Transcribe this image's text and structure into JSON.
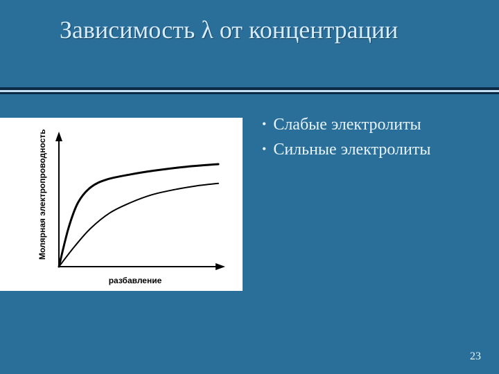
{
  "slide": {
    "title": "Зависимость λ от концентрации",
    "page_number": "23",
    "background_color": "#2a6f9a",
    "title_color": "#d6ecff",
    "text_color": "#e6f3ff"
  },
  "bullets": [
    {
      "label": "Слабые электролиты"
    },
    {
      "label": "Сильные электролиты"
    }
  ],
  "chart": {
    "type": "line",
    "background_color": "#ffffff",
    "x_label": "разбавление",
    "y_label": "Молярная электропроводность",
    "label_fontsize": 12,
    "label_fontweight": "bold",
    "axis_color": "#000000",
    "line_color": "#000000",
    "line_width_upper": 3,
    "line_width_lower": 2,
    "xlim": [
      0,
      100
    ],
    "ylim": [
      0,
      100
    ],
    "upper_curve": [
      {
        "x": 0,
        "y": 0
      },
      {
        "x": 6,
        "y": 30
      },
      {
        "x": 12,
        "y": 50
      },
      {
        "x": 20,
        "y": 62
      },
      {
        "x": 30,
        "y": 68
      },
      {
        "x": 45,
        "y": 72
      },
      {
        "x": 60,
        "y": 75
      },
      {
        "x": 80,
        "y": 78
      },
      {
        "x": 100,
        "y": 80
      }
    ],
    "lower_curve": [
      {
        "x": 0,
        "y": 0
      },
      {
        "x": 10,
        "y": 16
      },
      {
        "x": 20,
        "y": 30
      },
      {
        "x": 32,
        "y": 42
      },
      {
        "x": 45,
        "y": 50
      },
      {
        "x": 58,
        "y": 56
      },
      {
        "x": 72,
        "y": 60
      },
      {
        "x": 86,
        "y": 63
      },
      {
        "x": 100,
        "y": 65
      }
    ]
  }
}
